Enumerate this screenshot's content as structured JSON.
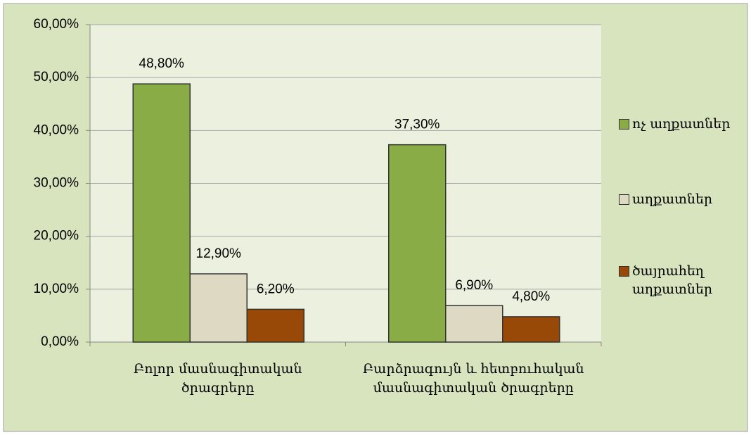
{
  "chart_data": {
    "type": "bar",
    "categories": [
      "Բոլոր մասնագիտական ծրագրերը",
      "Բարձրագույն և հետբուհական մասնագիտական ծրագրերը"
    ],
    "series": [
      {
        "name": "ոչ աղքատներ",
        "color": "#8aac47",
        "values": [
          48.8,
          37.3
        ],
        "value_labels": [
          "48,80%",
          "37,30%"
        ]
      },
      {
        "name": "աղքատներ",
        "color": "#ddd9c3",
        "values": [
          12.9,
          6.9
        ],
        "value_labels": [
          "12,90%",
          "6,90%"
        ]
      },
      {
        "name": "ծայրահեղ աղքատներ",
        "color": "#984807",
        "values": [
          6.2,
          4.8
        ],
        "value_labels": [
          "6,20%",
          "4,80%"
        ]
      }
    ],
    "ylim": [
      0,
      60
    ],
    "yticks": [
      {
        "value": 0,
        "label": "0,00%"
      },
      {
        "value": 10,
        "label": "10,00%"
      },
      {
        "value": 20,
        "label": "20,00%"
      },
      {
        "value": 30,
        "label": "30,00%"
      },
      {
        "value": 40,
        "label": "40,00%"
      },
      {
        "value": 50,
        "label": "50,00%"
      },
      {
        "value": 60,
        "label": "60,00%"
      }
    ],
    "grid": true,
    "legend": "right"
  }
}
